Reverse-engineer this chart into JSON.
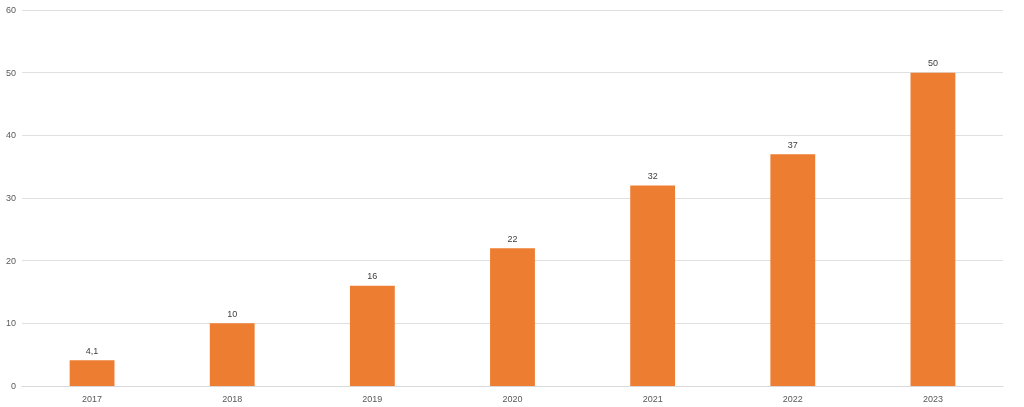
{
  "chart_data": {
    "type": "bar",
    "categories": [
      "2017",
      "2018",
      "2019",
      "2020",
      "2021",
      "2022",
      "2023"
    ],
    "values": [
      4.1,
      10,
      16,
      22,
      32,
      37,
      50
    ],
    "value_labels": [
      "4,1",
      "10",
      "16",
      "22",
      "32",
      "37",
      "50"
    ],
    "color": "#ed7d31",
    "ylim": [
      0,
      60
    ],
    "yticks": [
      0,
      10,
      20,
      30,
      40,
      50,
      60
    ],
    "grid": "y"
  }
}
